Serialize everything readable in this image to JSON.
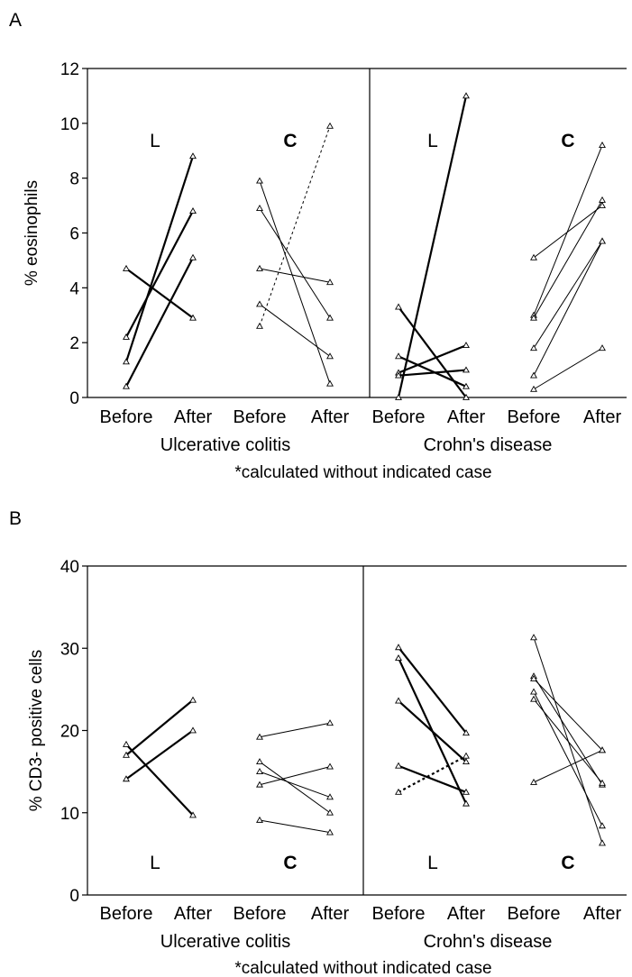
{
  "chart_data": [
    {
      "panel_label": "A",
      "type": "line",
      "ylabel": "% eosinophils",
      "ylim": [
        0,
        12
      ],
      "yticks": [
        "0",
        "2",
        "4",
        "6",
        "8",
        "10",
        "12"
      ],
      "x_categories": [
        "Before",
        "After",
        "Before",
        "After",
        "Before",
        "After",
        "Before",
        "After"
      ],
      "groups": [
        "Ulcerative colitis",
        "Crohn's disease"
      ],
      "footnote": "*calculated without indicated case",
      "subsets": [
        {
          "label": "L",
          "group": "Ulcerative colitis",
          "pairs": [
            [
              4.7,
              2.9
            ],
            [
              2.2,
              6.8
            ],
            [
              1.3,
              8.8
            ],
            [
              0.4,
              5.1
            ]
          ],
          "dashed": []
        },
        {
          "label": "C",
          "group": "Ulcerative colitis",
          "pairs": [
            [
              7.9,
              0.5
            ],
            [
              6.9,
              2.9
            ],
            [
              4.7,
              4.2
            ],
            [
              3.4,
              1.5
            ],
            [
              2.6,
              9.9
            ]
          ],
          "dashed": [
            4
          ]
        },
        {
          "label": "L",
          "group": "Crohn's disease",
          "pairs": [
            [
              0.0,
              11.0
            ],
            [
              3.3,
              0.0
            ],
            [
              1.5,
              0.4
            ],
            [
              0.9,
              1.9
            ],
            [
              0.8,
              1.0
            ]
          ],
          "dashed": []
        },
        {
          "label": "C",
          "group": "Crohn's disease",
          "pairs": [
            [
              5.1,
              7.0
            ],
            [
              3.0,
              9.2
            ],
            [
              2.9,
              7.2
            ],
            [
              1.8,
              5.7
            ],
            [
              0.8,
              5.7
            ],
            [
              0.3,
              1.8
            ]
          ],
          "dashed": []
        }
      ]
    },
    {
      "panel_label": "B",
      "type": "line",
      "ylabel": "% CD3- positive cells",
      "ylim": [
        0,
        40
      ],
      "yticks": [
        "0",
        "10",
        "20",
        "30",
        "40"
      ],
      "x_categories": [
        "Before",
        "After",
        "Before",
        "After",
        "Before",
        "After",
        "Before",
        "After"
      ],
      "groups": [
        "Ulcerative colitis",
        "Crohn's disease"
      ],
      "footnote": "*calculated without indicated case",
      "subsets": [
        {
          "label": "L",
          "group": "Ulcerative colitis",
          "pairs": [
            [
              18.3,
              9.7
            ],
            [
              17.0,
              23.7
            ],
            [
              14.1,
              20.0
            ]
          ],
          "dashed": []
        },
        {
          "label": "C",
          "group": "Ulcerative colitis",
          "pairs": [
            [
              19.2,
              20.9
            ],
            [
              16.2,
              10.0
            ],
            [
              15.0,
              11.9
            ],
            [
              13.4,
              15.6
            ],
            [
              9.1,
              7.6
            ]
          ],
          "dashed": []
        },
        {
          "label": "L",
          "group": "Crohn's disease",
          "pairs": [
            [
              30.1,
              19.7
            ],
            [
              28.8,
              11.1
            ],
            [
              23.6,
              16.2
            ],
            [
              15.7,
              12.5
            ],
            [
              12.5,
              16.9
            ]
          ],
          "dashed": [
            4
          ]
        },
        {
          "label": "C",
          "group": "Crohn's disease",
          "pairs": [
            [
              31.3,
              6.3
            ],
            [
              26.6,
              13.4
            ],
            [
              26.3,
              17.6
            ],
            [
              24.7,
              8.4
            ],
            [
              23.8,
              13.6
            ],
            [
              13.7,
              17.6
            ]
          ],
          "dashed": []
        }
      ]
    }
  ]
}
